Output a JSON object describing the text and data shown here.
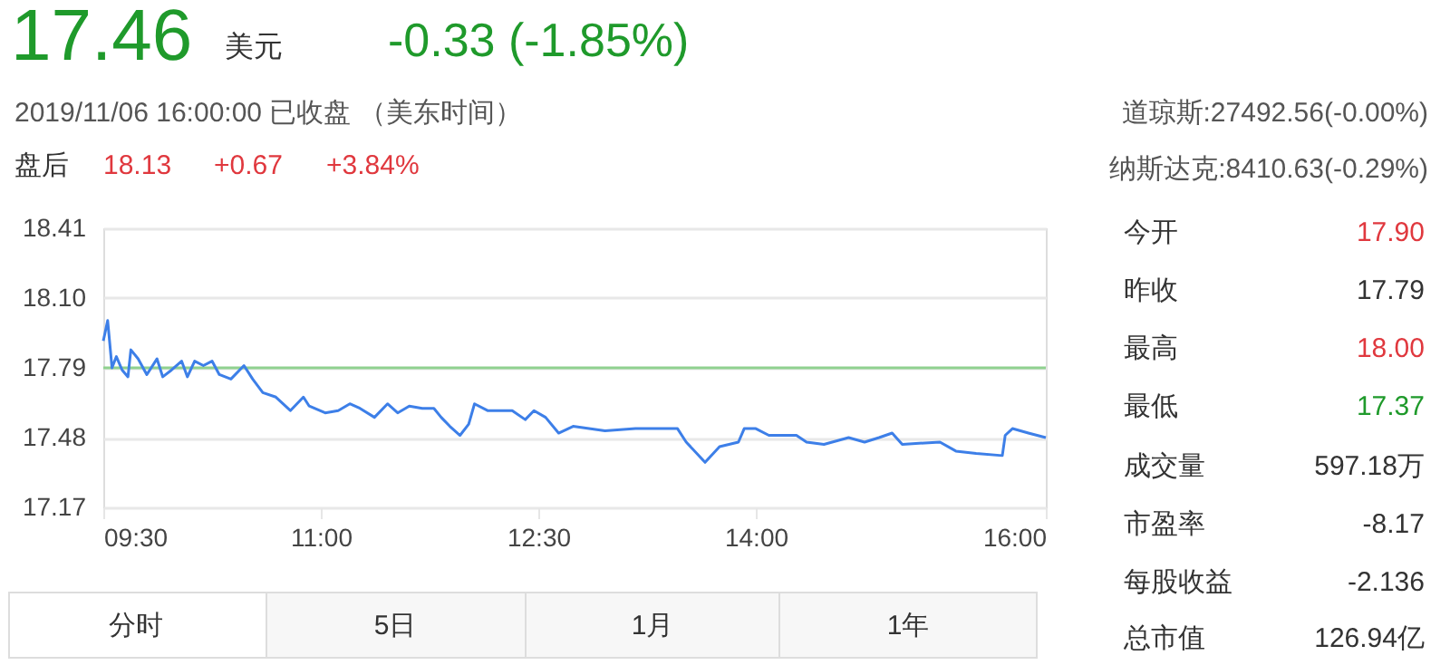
{
  "chart_data": {
    "type": "line",
    "title": "17.46",
    "subtitle": "2019/11/06 16:00:00   已收盘   （美东时间）",
    "annotations": [
      "美元",
      "-0.33 (-1.85%)",
      "盘后",
      "18.13",
      "+0.67",
      "+3.84%",
      "道琼斯:27492.56(-0.00%)",
      "纳斯达克:8410.63(-0.29%)",
      "今开",
      "17.90",
      "昨收",
      "17.79",
      "最高",
      "18.00",
      "最低",
      "17.37",
      "成交量",
      "597.18万",
      "市盈率",
      "-8.17",
      "每股收益",
      "-2.136",
      "总市值",
      "126.94亿",
      "分时",
      "5日",
      "1月",
      "1年"
    ],
    "series": [
      {
        "color": "#3d7fe8",
        "x": [
          9.5,
          9.53,
          9.56,
          9.59,
          9.63,
          9.67,
          9.69,
          9.74,
          9.8,
          9.87,
          9.91,
          9.97,
          10.04,
          10.08,
          10.13,
          10.19,
          10.25,
          10.3,
          10.38,
          10.47,
          10.53,
          10.6,
          10.69,
          10.79,
          10.88,
          10.92,
          11.03,
          11.12,
          11.2,
          11.27,
          11.37,
          11.46,
          11.53,
          11.61,
          11.7,
          11.78,
          11.83,
          11.89,
          11.96,
          12.02,
          12.06,
          12.15,
          12.32,
          12.41,
          12.47,
          12.55,
          12.64,
          12.74,
          12.96,
          13.17,
          13.46,
          13.52,
          13.65,
          13.75,
          13.88,
          13.92,
          14.0,
          14.09,
          14.28,
          14.35,
          14.47,
          14.64,
          14.75,
          14.85,
          14.94,
          15.01,
          15.27,
          15.38,
          15.52,
          15.7,
          15.72,
          15.77,
          15.88,
          15.94,
          16.0
        ],
        "values": [
          17.91,
          18.0,
          17.79,
          17.84,
          17.78,
          17.75,
          17.87,
          17.83,
          17.76,
          17.83,
          17.75,
          17.78,
          17.82,
          17.75,
          17.82,
          17.8,
          17.82,
          17.76,
          17.74,
          17.8,
          17.74,
          17.68,
          17.66,
          17.6,
          17.66,
          17.62,
          17.59,
          17.6,
          17.63,
          17.61,
          17.57,
          17.63,
          17.59,
          17.62,
          17.61,
          17.61,
          17.57,
          17.53,
          17.49,
          17.54,
          17.63,
          17.6,
          17.6,
          17.56,
          17.6,
          17.57,
          17.5,
          17.53,
          17.51,
          17.52,
          17.52,
          17.46,
          17.37,
          17.44,
          17.46,
          17.52,
          17.52,
          17.49,
          17.49,
          17.46,
          17.45,
          17.48,
          17.46,
          17.48,
          17.5,
          17.45,
          17.46,
          17.42,
          17.41,
          17.4,
          17.49,
          17.52,
          17.5,
          17.49,
          17.48
        ]
      }
    ],
    "xlim": [
      9.5,
      16
    ],
    "xticks": [
      {
        "value": 9.5,
        "label": "09:30"
      },
      {
        "value": 11,
        "label": "11:00"
      },
      {
        "value": 12.5,
        "label": "12:30"
      },
      {
        "value": 14,
        "label": "14:00"
      },
      {
        "value": 16,
        "label": "16:00"
      }
    ],
    "ylim": [
      17.17,
      18.41
    ],
    "yticks": [
      17.17,
      17.48,
      17.79,
      {
        "value": 18.1,
        "label": "18.10"
      },
      18.41
    ],
    "ref_lines": [
      {
        "axis": "y",
        "value": 17.79,
        "color": "#8fd18f"
      }
    ],
    "grid": "y",
    "line_style": "solid",
    "marker": "none"
  }
}
